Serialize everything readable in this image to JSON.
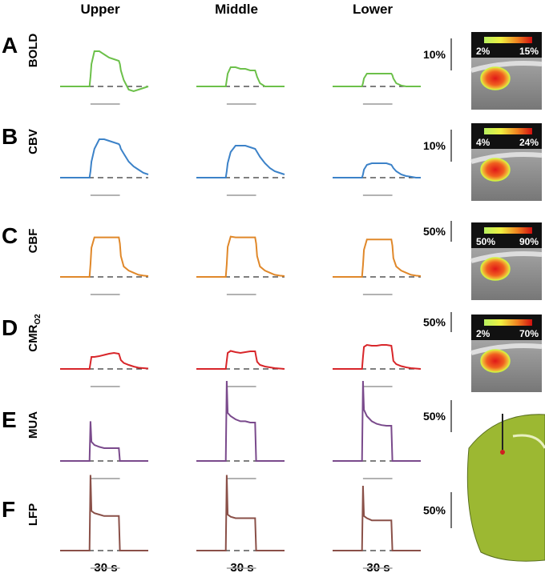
{
  "columns": [
    "Upper",
    "Middle",
    "Lower"
  ],
  "time_label": "30 s",
  "t": [
    0,
    10,
    20,
    30,
    31,
    32,
    35,
    40,
    45,
    50,
    55,
    60,
    61,
    62,
    65,
    70,
    75,
    80,
    85,
    90
  ],
  "stimulus": [
    31,
    61
  ],
  "rows": [
    {
      "letter": "A",
      "signal": "BOLD",
      "scale": 10,
      "scale_label": "10%",
      "color": "#6cc04a",
      "colorbar": [
        "2%",
        "15%"
      ],
      "traces": [
        [
          0,
          0,
          0,
          0,
          3,
          7,
          11,
          11,
          10,
          9,
          8.5,
          8,
          7,
          5,
          2,
          -1,
          -1.5,
          -1,
          -0.5,
          0
        ],
        [
          0,
          0,
          0,
          0,
          2,
          4,
          6,
          6,
          5.5,
          5.5,
          5,
          5,
          4,
          3,
          1,
          0,
          0,
          0,
          0,
          0
        ],
        [
          0,
          0,
          0,
          0,
          1,
          2.5,
          4,
          4,
          4,
          4,
          4,
          4,
          3.5,
          2.5,
          1,
          0.3,
          0,
          0,
          0,
          0
        ]
      ]
    },
    {
      "letter": "B",
      "signal": "CBV",
      "scale": 10,
      "scale_label": "10%",
      "color": "#3c82c8",
      "colorbar": [
        "4%",
        "24%"
      ],
      "traces": [
        [
          0,
          0,
          0,
          0,
          2,
          5,
          9,
          12,
          12,
          11.5,
          11,
          10.5,
          10,
          9,
          7.5,
          5,
          3.5,
          2.5,
          1.5,
          1
        ],
        [
          0,
          0,
          0,
          0,
          2,
          4.5,
          8,
          10,
          10,
          10,
          9.5,
          9,
          8.5,
          8,
          6.5,
          4.5,
          3,
          2,
          1.5,
          1
        ],
        [
          0,
          0,
          0,
          0,
          1,
          2.5,
          4,
          4.5,
          4.5,
          4.5,
          4.5,
          4,
          3.5,
          3,
          2,
          1,
          0.5,
          0.3,
          0,
          0
        ]
      ]
    },
    {
      "letter": "C",
      "signal": "CBF",
      "scale": 50,
      "scale_label": "50%",
      "color": "#e0882a",
      "colorbar": [
        "50%",
        "90%"
      ],
      "traces": [
        [
          0,
          0,
          0,
          0,
          30,
          70,
          95,
          95,
          95,
          95,
          95,
          95,
          80,
          50,
          25,
          15,
          10,
          5,
          3,
          2
        ],
        [
          0,
          0,
          0,
          0,
          30,
          72,
          97,
          95,
          95,
          95,
          95,
          95,
          80,
          50,
          25,
          15,
          10,
          5,
          3,
          2
        ],
        [
          0,
          0,
          0,
          0,
          28,
          65,
          90,
          90,
          90,
          90,
          90,
          90,
          75,
          45,
          25,
          15,
          10,
          5,
          3,
          2
        ]
      ]
    },
    {
      "letter": "D",
      "signal": "CMR",
      "signal_sub": "O2",
      "scale": 50,
      "scale_label": "50%",
      "color": "#d8262a",
      "colorbar": [
        "2%",
        "70%"
      ],
      "traces": [
        [
          0,
          0,
          0,
          0,
          15,
          30,
          30,
          32,
          35,
          38,
          40,
          38,
          30,
          22,
          15,
          10,
          6,
          3,
          2,
          1
        ],
        [
          0,
          0,
          0,
          0,
          20,
          40,
          45,
          42,
          40,
          42,
          44,
          44,
          30,
          18,
          10,
          6,
          4,
          2,
          1,
          0
        ],
        [
          0,
          0,
          0,
          0,
          30,
          55,
          60,
          58,
          58,
          60,
          60,
          58,
          40,
          20,
          12,
          7,
          4,
          2,
          1,
          0
        ]
      ]
    },
    {
      "letter": "E",
      "signal": "MUA",
      "scale": 50,
      "scale_label": "50%",
      "color": "#7a4a8c",
      "traces": [
        [
          0,
          0,
          0,
          0,
          62,
          30,
          25,
          22,
          20,
          20,
          20,
          20,
          0,
          0,
          0,
          0,
          0,
          0,
          0,
          0
        ],
        [
          0,
          0,
          0,
          0,
          125,
          75,
          70,
          65,
          62,
          62,
          60,
          60,
          0,
          0,
          0,
          0,
          0,
          0,
          0,
          0
        ],
        [
          0,
          0,
          0,
          0,
          125,
          80,
          70,
          62,
          58,
          56,
          55,
          55,
          0,
          0,
          0,
          0,
          0,
          0,
          0,
          0
        ]
      ]
    },
    {
      "letter": "F",
      "signal": "LFP",
      "scale": 50,
      "scale_label": "50%",
      "color": "#8a5048",
      "traces": [
        [
          0,
          0,
          0,
          0,
          105,
          55,
          52,
          50,
          48,
          48,
          48,
          48,
          0,
          0,
          0,
          0,
          0,
          0,
          0,
          0
        ],
        [
          0,
          0,
          0,
          0,
          105,
          50,
          47,
          45,
          45,
          45,
          45,
          45,
          0,
          0,
          0,
          0,
          0,
          0,
          0,
          0
        ],
        [
          0,
          0,
          0,
          0,
          90,
          48,
          45,
          42,
          42,
          42,
          42,
          42,
          0,
          0,
          0,
          0,
          0,
          0,
          0,
          0
        ]
      ]
    }
  ]
}
